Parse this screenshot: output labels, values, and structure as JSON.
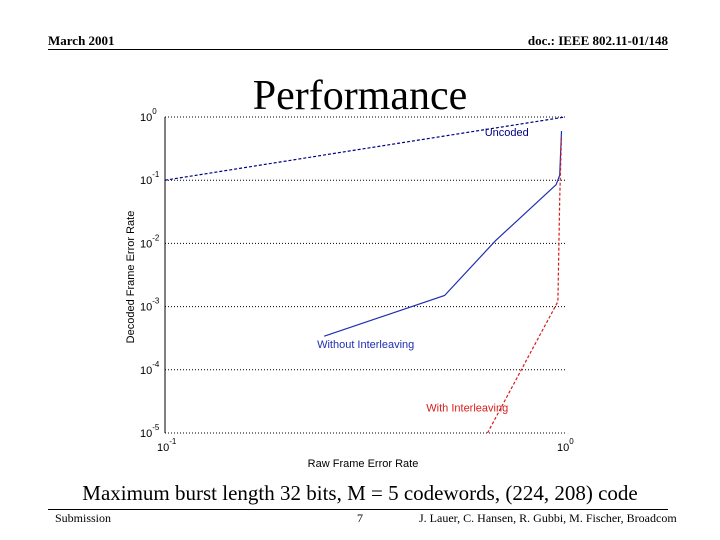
{
  "header": {
    "date": "March 2001",
    "doc": "doc.: IEEE 802.11-01/148"
  },
  "title": "Performance",
  "caption": "Maximum burst length 32 bits, M = 5 codewords, (224, 208) code",
  "footer": {
    "left": "Submission",
    "page": "7",
    "authors": "J. Lauer, C. Hansen, R. Gubbi, M. Fischer, Broadcom"
  },
  "colors": {
    "uncoded": "#000080",
    "without": "#1f2fb0",
    "with": "#d81b1b"
  },
  "chart_data": {
    "type": "line",
    "title": "Performance",
    "xlabel": "Raw Frame Error Rate",
    "ylabel": "Decoded Frame Error Rate",
    "xscale": "log",
    "yscale": "log",
    "xlim": [
      0.1,
      1
    ],
    "ylim": [
      1e-05,
      1
    ],
    "grid": "horizontal dotted",
    "x_ticks": [
      {
        "base": "10",
        "exp": "-1",
        "value": 0.1
      },
      {
        "base": "10",
        "exp": "0",
        "value": 1
      }
    ],
    "y_ticks": [
      {
        "base": "10",
        "exp": "0",
        "value": 1
      },
      {
        "base": "10",
        "exp": "-1",
        "value": 0.1
      },
      {
        "base": "10",
        "exp": "-2",
        "value": 0.01
      },
      {
        "base": "10",
        "exp": "-3",
        "value": 0.001
      },
      {
        "base": "10",
        "exp": "-4",
        "value": 0.0001
      },
      {
        "base": "10",
        "exp": "-5",
        "value": 1e-05
      }
    ],
    "annotations": [
      {
        "text": "Uncoded",
        "series": "uncoded",
        "x": 0.63,
        "y": 0.5
      },
      {
        "text": "Without Interleaving",
        "series": "without",
        "x": 0.24,
        "y": 0.00022
      },
      {
        "text": "With Interleaving",
        "series": "with",
        "x": 0.45,
        "y": 2.2e-05
      }
    ],
    "series": [
      {
        "name": "Uncoded",
        "key": "uncoded",
        "style": "dashed",
        "x": [
          0.1,
          0.3,
          0.6,
          1.0
        ],
        "y": [
          0.1,
          0.3,
          0.6,
          1.0
        ]
      },
      {
        "name": "Without Interleaving",
        "key": "without",
        "style": "solid",
        "x": [
          0.25,
          0.5,
          0.67,
          0.95,
          0.97,
          0.98
        ],
        "y": [
          0.00034,
          0.0015,
          0.011,
          0.085,
          0.12,
          0.6
        ]
      },
      {
        "name": "With Interleaving",
        "key": "with",
        "style": "dashed",
        "x": [
          0.64,
          0.72,
          0.84,
          0.96,
          0.97,
          0.98
        ],
        "y": [
          1e-05,
          4e-05,
          0.00025,
          0.0012,
          0.05,
          0.5
        ]
      }
    ]
  }
}
